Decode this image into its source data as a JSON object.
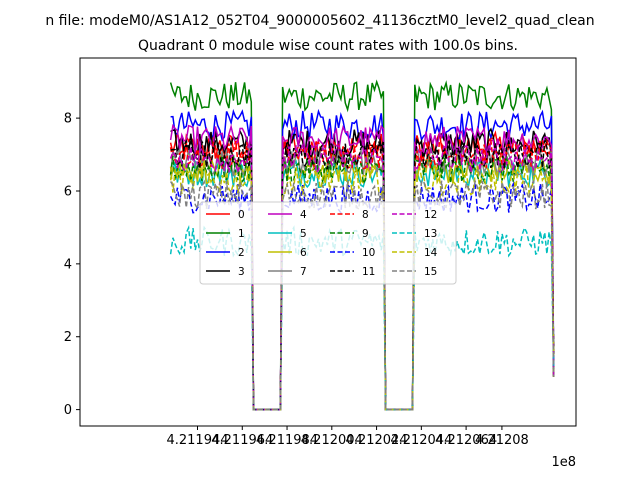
{
  "chart_data": {
    "type": "line",
    "suptitle": "n file: modeM0/AS1A12_052T04_9000005602_41136cztM0_level2_quad_clean",
    "title": "Quadrant 0 module wise count rates with 100.0s bins.",
    "xlabel": "",
    "ylabel": "",
    "x_offset_label": "1e8",
    "xlim": [
      4.2118915,
      4.2121131
    ],
    "ylim": [
      -0.45,
      9.65
    ],
    "x_ticks": [
      4.211944,
      4.211964,
      4.211984,
      4.212004,
      4.212024,
      4.212044,
      4.212064,
      4.21208
    ],
    "x_tick_labels": [
      "4.211944",
      "4.211964",
      "4.211984",
      "4.212004",
      "4.212024",
      "4.212044",
      "4.212064",
      "4.21208"
    ],
    "y_ticks": [
      0,
      2,
      4,
      6,
      8
    ],
    "y_tick_labels": [
      "0",
      "2",
      "4",
      "6",
      "8"
    ],
    "x_start": 4.211932,
    "x_end": 4.2121031,
    "n_points": 172,
    "gaps_x": [
      [
        4.211969,
        4.211982
      ],
      [
        4.212028,
        4.212041
      ]
    ],
    "gap_value": 0,
    "grid": false,
    "legend": {
      "placement": "center",
      "columns": 4
    },
    "series": [
      {
        "name": "0",
        "color": "#ff0000",
        "style": "solid",
        "level": 7.2
      },
      {
        "name": "1",
        "color": "#008000",
        "style": "solid",
        "level": 8.6
      },
      {
        "name": "2",
        "color": "#0000ff",
        "style": "solid",
        "level": 7.8
      },
      {
        "name": "3",
        "color": "#000000",
        "style": "solid",
        "level": 7.3
      },
      {
        "name": "4",
        "color": "#bf00bf",
        "style": "solid",
        "level": 7.4
      },
      {
        "name": "5",
        "color": "#00bfbf",
        "style": "solid",
        "level": 6.5
      },
      {
        "name": "6",
        "color": "#bfbf00",
        "style": "solid",
        "level": 6.6
      },
      {
        "name": "7",
        "color": "#808080",
        "style": "solid",
        "level": 6.8
      },
      {
        "name": "8",
        "color": "#ff0000",
        "style": "dashed",
        "level": 7.0
      },
      {
        "name": "9",
        "color": "#008000",
        "style": "dashed",
        "level": 6.6
      },
      {
        "name": "10",
        "color": "#0000ff",
        "style": "dashed",
        "level": 5.8
      },
      {
        "name": "11",
        "color": "#000000",
        "style": "dashed",
        "level": 7.0
      },
      {
        "name": "12",
        "color": "#bf00bf",
        "style": "dashed",
        "level": 6.9
      },
      {
        "name": "13",
        "color": "#00bfbf",
        "style": "dashed",
        "level": 4.6
      },
      {
        "name": "14",
        "color": "#bfbf00",
        "style": "dashed",
        "level": 6.3
      },
      {
        "name": "15",
        "color": "#808080",
        "style": "dashed",
        "level": 5.9
      }
    ]
  }
}
